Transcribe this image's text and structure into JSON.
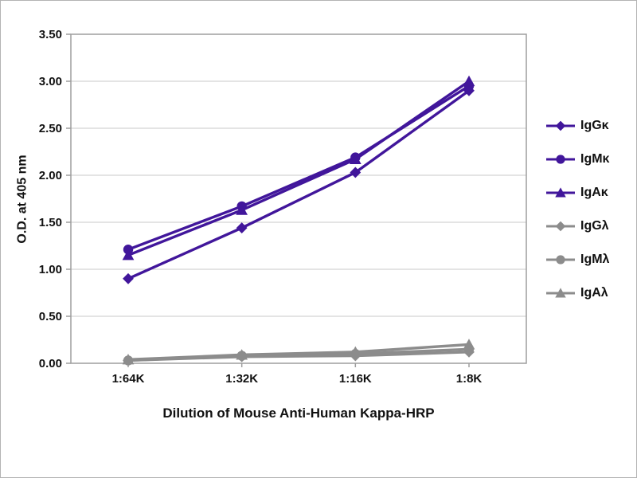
{
  "chart_data": {
    "type": "line",
    "title": "",
    "xlabel": "Dilution of Mouse Anti-Human Kappa-HRP",
    "ylabel": "O.D. at 405 nm",
    "categories": [
      "1:64K",
      "1:32K",
      "1:16K",
      "1:8K"
    ],
    "ylim": [
      0,
      3.5
    ],
    "ytick_step": 0.5,
    "ytick_labels": [
      "0.00",
      "0.50",
      "1.00",
      "1.50",
      "2.00",
      "2.50",
      "3.00",
      "3.50"
    ],
    "grid": true,
    "legend_position": "right",
    "series": [
      {
        "name": "IgGκ",
        "marker": "diamond",
        "color": "#41169b",
        "values": [
          0.9,
          1.44,
          2.03,
          2.9
        ]
      },
      {
        "name": "IgMκ",
        "marker": "circle",
        "color": "#41169b",
        "values": [
          1.21,
          1.67,
          2.19,
          2.95
        ]
      },
      {
        "name": "IgAκ",
        "marker": "triangle",
        "color": "#41169b",
        "values": [
          1.15,
          1.63,
          2.17,
          3.0
        ]
      },
      {
        "name": "IgGλ",
        "marker": "diamond",
        "color": "#8c8c8c",
        "values": [
          0.03,
          0.07,
          0.08,
          0.12
        ]
      },
      {
        "name": "IgMλ",
        "marker": "circle",
        "color": "#8c8c8c",
        "values": [
          0.03,
          0.08,
          0.1,
          0.15
        ]
      },
      {
        "name": "IgAλ",
        "marker": "triangle",
        "color": "#8c8c8c",
        "values": [
          0.04,
          0.09,
          0.12,
          0.2
        ]
      }
    ]
  },
  "colors": {
    "grid": "#c8c8c8",
    "axis": "#9e9e9e",
    "text": "#111111",
    "purple": "#41169b",
    "gray": "#8c8c8c"
  }
}
